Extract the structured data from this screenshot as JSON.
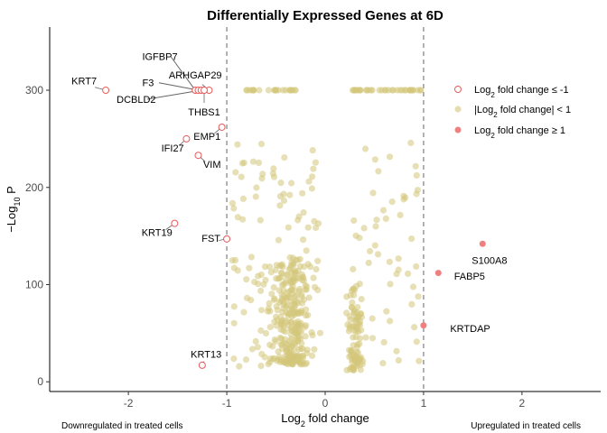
{
  "chart_data": {
    "type": "scatter",
    "title": "Differentially Expressed Genes at 6D",
    "xlabel": {
      "main": "Log",
      "sub": "2",
      "rest": " fold change"
    },
    "ylabel": {
      "prefix": "−Log",
      "sub": "10",
      "rest": " P"
    },
    "xlim": [
      -2.8,
      2.8
    ],
    "ylim": [
      -10,
      365
    ],
    "x_ticks": [
      -2,
      -1,
      0,
      1,
      2
    ],
    "y_ticks": [
      0,
      100,
      200,
      300
    ],
    "thresholds_x": [
      -1,
      1
    ],
    "legend": {
      "placement": "right",
      "items": [
        {
          "pre": "Log",
          "sub": "2",
          "post": " fold change ≤ -1"
        },
        {
          "pre": "|Log",
          "sub": "2",
          "post": " fold change| < 1"
        },
        {
          "pre": "Log",
          "sub": "2",
          "post": " fold change ≥ 1"
        }
      ]
    },
    "captions": {
      "left": "Downregulated in treated cells",
      "right": "Upregulated in treated cells"
    },
    "colors": {
      "down": "#e85a5a",
      "ns": "#d4c77a",
      "up": "#f08080"
    },
    "down_points": [
      {
        "x": -2.23,
        "y": 300,
        "label": "KRT7",
        "lx": -2.45,
        "ly": 306,
        "line": false
      },
      {
        "x": -1.32,
        "y": 300,
        "label": "IGFBP7",
        "lx": -1.68,
        "ly": 331,
        "line": true
      },
      {
        "x": -1.18,
        "y": 300,
        "label": "ARHGAP29",
        "lx": -1.32,
        "ly": 312,
        "line": false
      },
      {
        "x": -1.29,
        "y": 300,
        "label": "F3",
        "lx": -1.8,
        "ly": 304,
        "line": true
      },
      {
        "x": -1.26,
        "y": 300,
        "label": "DCBLD2",
        "lx": -1.92,
        "ly": 287,
        "line": true
      },
      {
        "x": -1.23,
        "y": 300,
        "label": "THBS1",
        "lx": -1.23,
        "ly": 274,
        "line": false
      },
      {
        "x": -1.05,
        "y": 262,
        "label": "EMP1",
        "lx": -1.2,
        "ly": 249,
        "line": false
      },
      {
        "x": -1.41,
        "y": 250,
        "label": "IFI27",
        "lx": -1.55,
        "ly": 237,
        "line": false
      },
      {
        "x": -1.29,
        "y": 233,
        "label": "VIM",
        "lx": -1.15,
        "ly": 220,
        "line": false
      },
      {
        "x": -1.53,
        "y": 163,
        "label": "KRT19",
        "lx": -1.71,
        "ly": 150,
        "line": false
      },
      {
        "x": -1.0,
        "y": 147,
        "label": "FST",
        "lx": -1.16,
        "ly": 144,
        "line": false
      },
      {
        "x": -1.25,
        "y": 17,
        "label": "KRT13",
        "lx": -1.21,
        "ly": 25,
        "line": false
      }
    ],
    "up_points": [
      {
        "x": 1.6,
        "y": 142,
        "label": "S100A8",
        "lx": 1.49,
        "ly": 125
      },
      {
        "x": 1.15,
        "y": 112,
        "label": "FABP5",
        "lx": 1.31,
        "ly": 109
      },
      {
        "x": 1.0,
        "y": 58,
        "label": "KRTDAP",
        "lx": 1.27,
        "ly": 55
      }
    ]
  }
}
